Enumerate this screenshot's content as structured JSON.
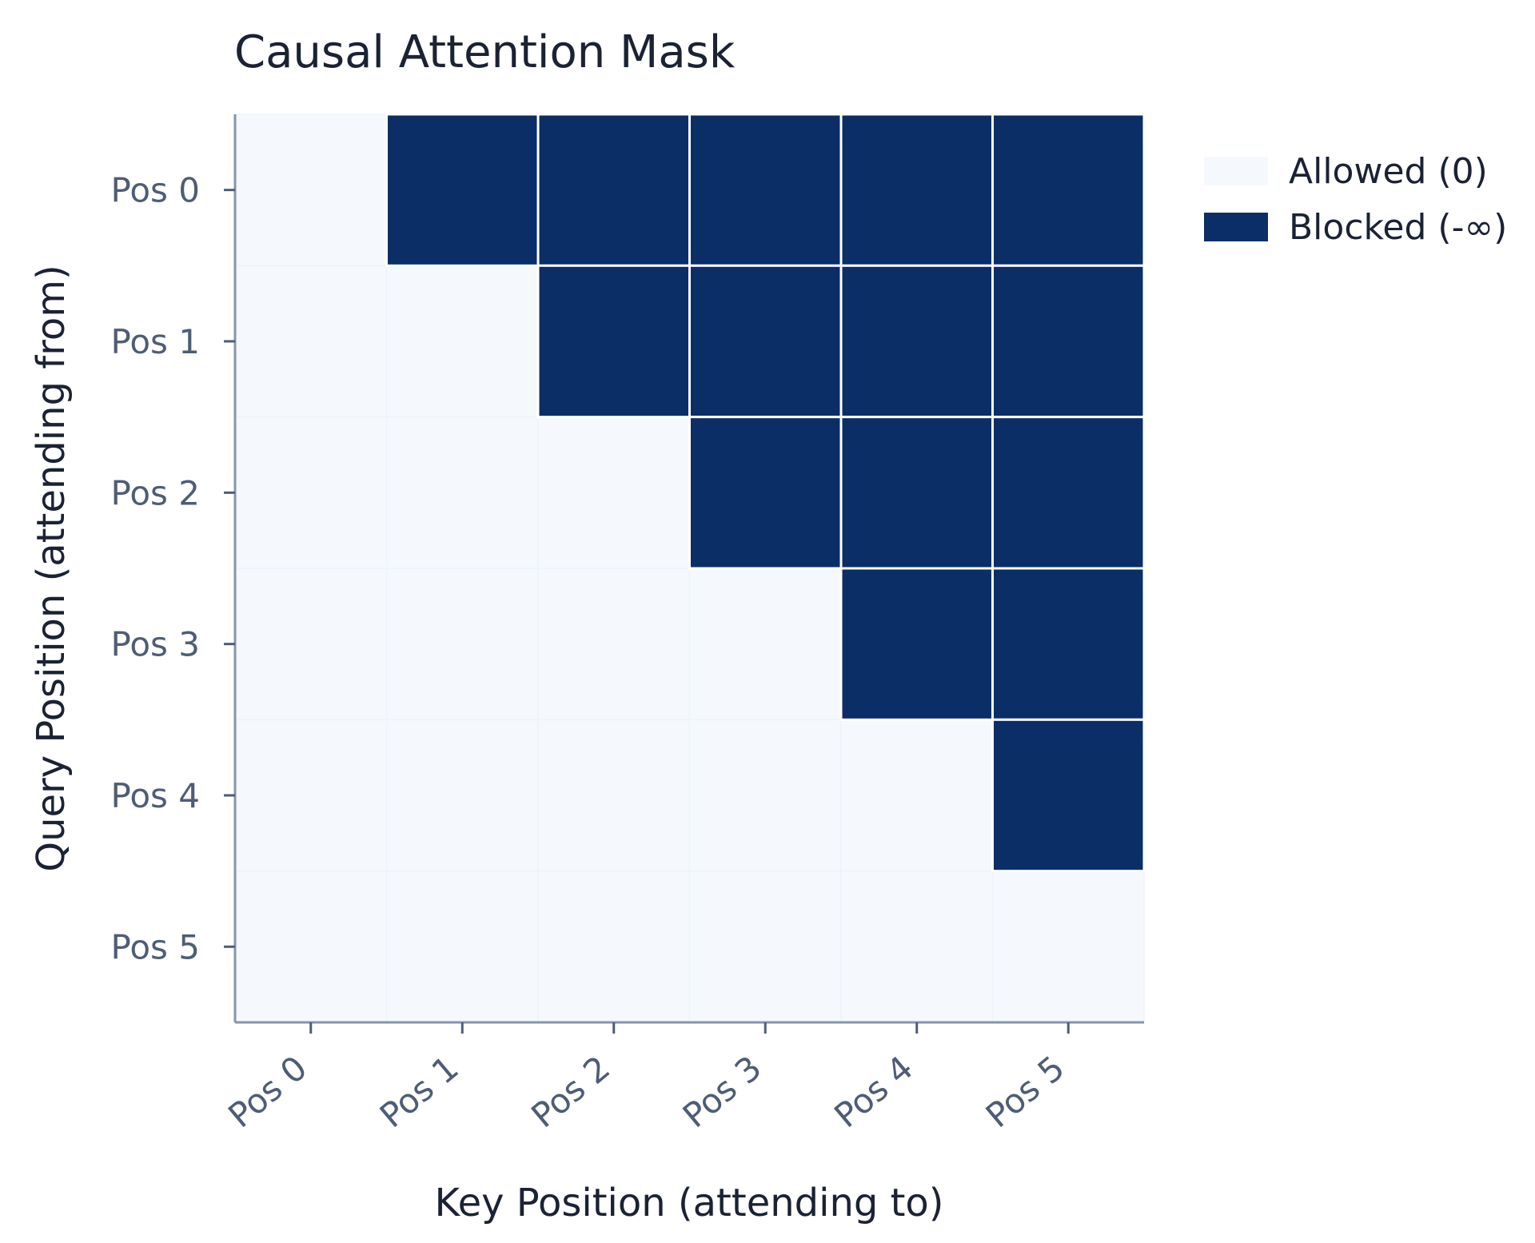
{
  "chart_data": {
    "type": "heatmap",
    "title": "Causal Attention Mask",
    "xlabel": "Key Position (attending to)",
    "ylabel": "Query Position (attending from)",
    "x_categories": [
      "Pos 0",
      "Pos 1",
      "Pos 2",
      "Pos 3",
      "Pos 4",
      "Pos 5"
    ],
    "y_categories": [
      "Pos 0",
      "Pos 1",
      "Pos 2",
      "Pos 3",
      "Pos 4",
      "Pos 5"
    ],
    "matrix": [
      [
        0,
        1,
        1,
        1,
        1,
        1
      ],
      [
        0,
        0,
        1,
        1,
        1,
        1
      ],
      [
        0,
        0,
        0,
        1,
        1,
        1
      ],
      [
        0,
        0,
        0,
        0,
        1,
        1
      ],
      [
        0,
        0,
        0,
        0,
        0,
        1
      ],
      [
        0,
        0,
        0,
        0,
        0,
        0
      ]
    ],
    "legend": [
      {
        "label": "Allowed (0)",
        "value": 0,
        "color": "#f5f9fd"
      },
      {
        "label": "Blocked (-∞)",
        "value": 1,
        "color": "#0b2e67"
      }
    ],
    "legend_position": "top-right",
    "grid": false
  },
  "colors": {
    "allowed": "#f5f9fd",
    "blocked": "#0b2e67",
    "axis": "#8594aa"
  }
}
